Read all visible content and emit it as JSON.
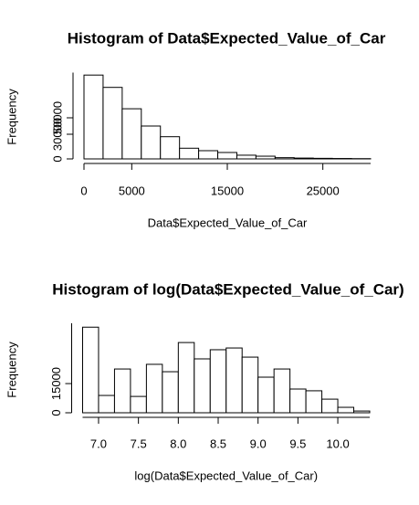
{
  "chart_data": [
    {
      "type": "histogram",
      "title": "Histogram of Data$Expected_Value_of_Car",
      "xlabel": "Data$Expected_Value_of_Car",
      "ylabel": "Frequency",
      "bins": [
        0,
        2000,
        4000,
        6000,
        8000,
        10000,
        12000,
        14000,
        16000,
        18000,
        20000,
        22000,
        24000,
        26000,
        28000,
        30000
      ],
      "values": [
        102000,
        87000,
        61000,
        40000,
        27000,
        13000,
        10000,
        7800,
        4500,
        3300,
        1500,
        1000,
        700,
        500,
        300
      ],
      "color": "#ffffff",
      "xlim": [
        0,
        30000
      ],
      "xticks": [
        0,
        5000,
        15000,
        25000
      ],
      "ylim": [
        0,
        105000
      ],
      "yticks": [
        0,
        30000,
        50000
      ]
    },
    {
      "type": "histogram",
      "title": "Histogram of log(Data$Expected_Value_of_Car)",
      "xlabel": "log(Data$Expected_Value_of_Car)",
      "ylabel": "Frequency",
      "bins": [
        6.8,
        7.0,
        7.2,
        7.4,
        7.6,
        7.8,
        8.0,
        8.2,
        8.4,
        8.6,
        8.8,
        9.0,
        9.2,
        9.4,
        9.6,
        9.8,
        10.0,
        10.2,
        10.4
      ],
      "values": [
        44000,
        8900,
        22500,
        8400,
        24900,
        21100,
        36100,
        27700,
        32400,
        33300,
        28600,
        18300,
        22500,
        12200,
        11300,
        7000,
        2800,
        900
      ],
      "color": "#ffffff",
      "xlim": [
        6.8,
        10.4
      ],
      "xticks": [
        {
          "value": 7,
          "label": "7.0"
        },
        {
          "value": 7.5,
          "label": "7.5"
        },
        {
          "value": 8,
          "label": "8.0"
        },
        {
          "value": 8.5,
          "label": "8.5"
        },
        {
          "value": 9,
          "label": "9.0"
        },
        {
          "value": 9.5,
          "label": "9.5"
        },
        {
          "value": 10,
          "label": "10.0"
        }
      ],
      "ylim": [
        0,
        46000
      ],
      "yticks": [
        0,
        15000
      ]
    }
  ]
}
